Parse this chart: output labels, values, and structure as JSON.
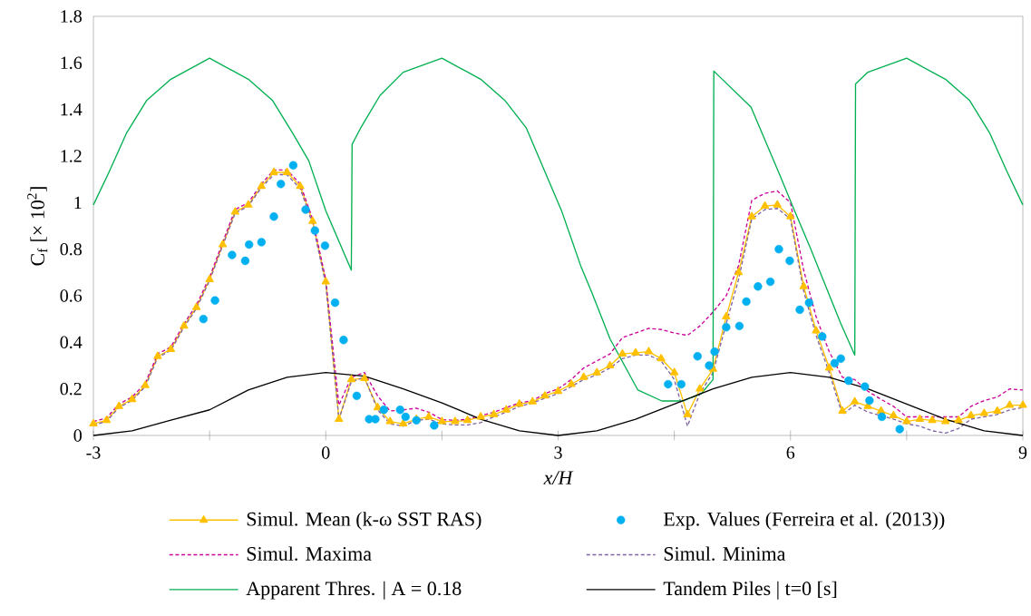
{
  "chart_data": {
    "type": "line",
    "xlabel": "x/H",
    "ylabel": "C$_{f}$ [× 10$^{2}$]",
    "xlim": [
      -3,
      9
    ],
    "ylim": [
      0,
      1.8
    ],
    "xticks": [
      -3,
      {
        "value": -1.5,
        "label": null
      },
      0,
      {
        "value": 1.5,
        "label": null
      },
      3,
      {
        "value": 4.5,
        "label": null
      },
      6,
      {
        "value": 7.5,
        "label": null
      },
      9
    ],
    "yticks": [
      0,
      0.2,
      0.4,
      0.6,
      0.8,
      1,
      1.2,
      1.4,
      1.6,
      1.8
    ],
    "legend": "bottom",
    "x": [
      -3,
      -2.83,
      -2.67,
      -2.5,
      -2.33,
      -2.17,
      -2,
      -1.83,
      -1.67,
      -1.5,
      -1.33,
      -1.17,
      -1,
      -0.83,
      -0.67,
      -0.5,
      -0.33,
      -0.17,
      0,
      0.17,
      0.33,
      0.5,
      0.67,
      0.83,
      1,
      1.17,
      1.33,
      1.5,
      1.67,
      1.83,
      2,
      2.17,
      2.33,
      2.5,
      2.67,
      2.83,
      3,
      3.17,
      3.33,
      3.5,
      3.67,
      3.83,
      4,
      4.17,
      4.33,
      4.5,
      4.67,
      4.83,
      5,
      5.17,
      5.33,
      5.5,
      5.67,
      5.83,
      6,
      6.17,
      6.33,
      6.5,
      6.67,
      6.83,
      7,
      7.17,
      7.33,
      7.5,
      7.67,
      7.83,
      8,
      8.17,
      8.33,
      8.5,
      8.67,
      8.83,
      9
    ],
    "series": [
      {
        "name": "Simul. Mean (k-ω SST RAS)",
        "color": "#ffc000",
        "marker": "triangle",
        "line_style": "solid",
        "values": [
          0.05,
          0.065,
          0.125,
          0.155,
          0.215,
          0.34,
          0.37,
          0.47,
          0.55,
          0.67,
          0.82,
          0.96,
          0.99,
          1.07,
          1.13,
          1.13,
          1.07,
          0.92,
          0.66,
          0.07,
          0.24,
          0.245,
          0.12,
          0.06,
          0.05,
          0.07,
          0.08,
          0.06,
          0.06,
          0.065,
          0.08,
          0.09,
          0.11,
          0.135,
          0.145,
          0.17,
          0.19,
          0.22,
          0.25,
          0.27,
          0.3,
          0.35,
          0.355,
          0.36,
          0.33,
          0.27,
          0.09,
          0.2,
          0.285,
          0.51,
          0.7,
          0.94,
          0.985,
          0.99,
          0.94,
          0.64,
          0.45,
          0.29,
          0.105,
          0.145,
          0.125,
          0.105,
          0.085,
          0.06,
          0.07,
          0.065,
          0.06,
          0.065,
          0.085,
          0.095,
          0.105,
          0.13,
          0.13
        ]
      },
      {
        "name": "Exp. Values (Ferreira et al. (2013))",
        "color": "#00b0f0",
        "type": "scatter",
        "marker": "circle",
        "x": [
          -1.58,
          -1.43,
          -1.21,
          -1.04,
          -0.99,
          -0.83,
          -0.67,
          -0.58,
          -0.42,
          -0.26,
          -0.14,
          -0.01,
          0.12,
          0.23,
          0.4,
          0.56,
          0.64,
          0.75,
          0.96,
          1.03,
          1.17,
          1.4,
          4.42,
          4.59,
          4.8,
          4.95,
          5.02,
          5.17,
          5.34,
          5.43,
          5.58,
          5.74,
          5.85,
          5.99,
          6.12,
          6.24,
          6.41,
          6.57,
          6.65,
          6.75,
          6.96,
          7.02,
          7.18,
          7.41
        ],
        "values": [
          0.5,
          0.58,
          0.775,
          0.75,
          0.82,
          0.83,
          0.94,
          1.08,
          1.16,
          0.97,
          0.88,
          0.815,
          0.57,
          0.41,
          0.17,
          0.07,
          0.07,
          0.11,
          0.11,
          0.08,
          0.065,
          0.043,
          0.22,
          0.22,
          0.34,
          0.3,
          0.36,
          0.465,
          0.47,
          0.575,
          0.64,
          0.66,
          0.8,
          0.75,
          0.54,
          0.57,
          0.425,
          0.31,
          0.33,
          0.235,
          0.21,
          0.15,
          0.08,
          0.027
        ]
      },
      {
        "name": "Simul. Maxima",
        "color": "#cc0099",
        "marker": "none",
        "line_style": "dashed",
        "values": [
          0.06,
          0.075,
          0.135,
          0.165,
          0.225,
          0.35,
          0.38,
          0.48,
          0.56,
          0.68,
          0.83,
          0.97,
          1.0,
          1.08,
          1.14,
          1.14,
          1.08,
          0.93,
          0.67,
          0.13,
          0.25,
          0.27,
          0.17,
          0.105,
          0.11,
          0.117,
          0.1,
          0.068,
          0.065,
          0.07,
          0.085,
          0.1,
          0.12,
          0.14,
          0.15,
          0.18,
          0.2,
          0.24,
          0.29,
          0.32,
          0.35,
          0.42,
          0.44,
          0.46,
          0.455,
          0.44,
          0.43,
          0.47,
          0.53,
          0.6,
          0.73,
          1.01,
          1.04,
          1.05,
          1.0,
          0.71,
          0.51,
          0.36,
          0.25,
          0.24,
          0.19,
          0.155,
          0.125,
          0.08,
          0.08,
          0.08,
          0.08,
          0.08,
          0.125,
          0.15,
          0.165,
          0.2,
          0.195
        ]
      },
      {
        "name": "Simul. Minima",
        "color": "#8064a2",
        "marker": "none",
        "line_style": "dashed",
        "values": [
          0.045,
          0.06,
          0.12,
          0.15,
          0.21,
          0.335,
          0.365,
          0.465,
          0.545,
          0.665,
          0.815,
          0.955,
          0.985,
          1.065,
          1.12,
          1.12,
          1.06,
          0.91,
          0.65,
          0.07,
          0.23,
          0.25,
          0.11,
          0.05,
          0.04,
          0.065,
          0.07,
          0.05,
          0.045,
          0.045,
          0.055,
          0.08,
          0.1,
          0.125,
          0.14,
          0.16,
          0.18,
          0.21,
          0.24,
          0.26,
          0.29,
          0.33,
          0.345,
          0.345,
          0.32,
          0.24,
          0.04,
          0.18,
          0.27,
          0.48,
          0.67,
          0.93,
          0.97,
          0.975,
          0.93,
          0.62,
          0.43,
          0.27,
          0.09,
          0.13,
          0.1,
          0.085,
          0.07,
          0.05,
          0.04,
          0.02,
          0.01,
          0.03,
          0.07,
          0.08,
          0.09,
          0.11,
          0.12
        ]
      },
      {
        "name": "Apparent Thres. | A = 0.18",
        "color": "#00b050",
        "marker": "none",
        "line_style": "solid",
        "x": [
          -3,
          -2.8,
          -2.57,
          -2.31,
          -2,
          -1.5,
          -1,
          -0.69,
          -0.43,
          -0.22,
          0,
          0.33,
          0.34,
          0.45,
          0.7,
          1,
          1.5,
          2,
          2.31,
          2.59,
          3.05,
          3.29,
          3.44,
          3.67,
          4.03,
          4.34,
          4.61,
          4.85,
          5.0,
          5.01,
          5.04,
          5.49,
          5.86,
          6.04,
          6.25,
          6.65,
          6.83,
          6.84,
          7.0,
          7.5,
          8.0,
          8.31,
          8.57,
          8.8,
          9
        ],
        "values": [
          0.99,
          1.13,
          1.3,
          1.44,
          1.53,
          1.62,
          1.53,
          1.44,
          1.3,
          1.18,
          0.965,
          0.71,
          1.25,
          1.32,
          1.46,
          1.56,
          1.62,
          1.53,
          1.44,
          1.32,
          0.96,
          0.73,
          0.61,
          0.415,
          0.195,
          0.148,
          0.148,
          0.18,
          0.24,
          1.565,
          1.555,
          1.41,
          1.12,
          0.975,
          0.81,
          0.48,
          0.345,
          1.51,
          1.56,
          1.62,
          1.53,
          1.44,
          1.3,
          1.13,
          0.99
        ]
      },
      {
        "name": "Tandem Piles | t=0 [s]",
        "color": "#000000",
        "marker": "none",
        "line_style": "solid",
        "x": [
          -3,
          -2.5,
          -2,
          -1.5,
          -1,
          -0.5,
          0,
          0.5,
          1,
          1.5,
          2,
          2.5,
          3,
          3.5,
          4,
          4.5,
          5,
          5.5,
          6,
          6.5,
          7,
          7.5,
          8,
          8.5,
          9
        ],
        "values": [
          0,
          0.02,
          0.066,
          0.11,
          0.195,
          0.25,
          0.27,
          0.255,
          0.2,
          0.14,
          0.07,
          0.02,
          0,
          0.02,
          0.07,
          0.135,
          0.2,
          0.25,
          0.27,
          0.25,
          0.2,
          0.135,
          0.07,
          0.02,
          0
        ]
      }
    ]
  }
}
